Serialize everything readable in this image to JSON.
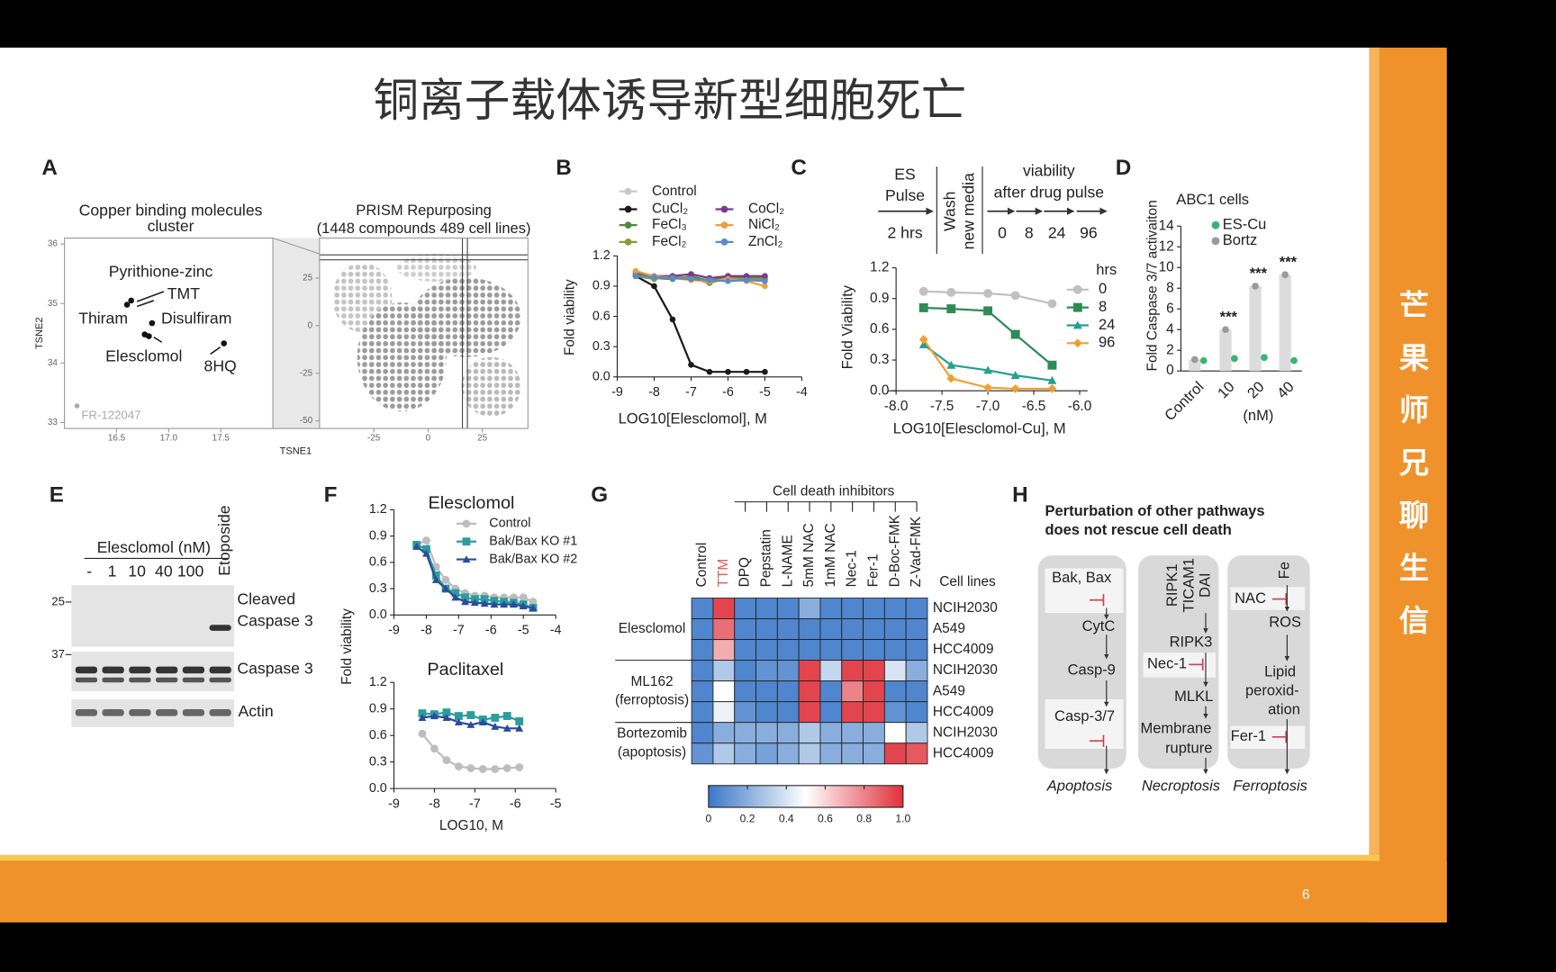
{
  "title": "铜离子载体诱导新型细胞死亡",
  "sidebar": [
    "芒",
    "果",
    "师",
    "兄",
    "聊",
    "生",
    "信"
  ],
  "page_number": "6",
  "panels": {
    "A": {
      "label": "A",
      "left_title": [
        "Copper binding molecules",
        "cluster"
      ],
      "right_title": [
        "PRISM Repurposing",
        "(1448 compounds 489 cell lines)"
      ],
      "ylabel": "TSNE2",
      "xlabel": "TSNE1",
      "cluster": {
        "type": "scatter",
        "xlim": [
          16,
          18
        ],
        "ylim": [
          32.9,
          36.1
        ],
        "xticks": [
          16.5,
          {
            "value": 17,
            "label": "17.0"
          },
          17.5
        ],
        "yticks": [
          33,
          34,
          35,
          36
        ],
        "x": [
          16.6,
          16.64,
          16.77,
          16.81,
          16.84,
          17.53,
          16.12
        ],
        "y": [
          34.98,
          35.05,
          34.48,
          34.45,
          34.67,
          34.33,
          33.28
        ],
        "annotations": [
          "Pyrithione-zinc",
          "TMT",
          "Thiram",
          "Disulfiram",
          "Elesclomol",
          "8HQ",
          "FR-122047"
        ]
      },
      "prism": {
        "type": "scatter",
        "xlim": [
          -50,
          46
        ],
        "ylim": [
          -54,
          46
        ],
        "xticks": [
          -25,
          0,
          25
        ],
        "yticks": [
          25,
          0,
          -25,
          -50
        ]
      }
    },
    "B": {
      "label": "B",
      "type": "line",
      "ylabel": "Fold viability",
      "xlabel": "LOG10[Elesclomol], M",
      "xlim": [
        -9,
        -4
      ],
      "ylim": [
        0,
        1.2
      ],
      "xticks": [
        -9,
        -8,
        -7,
        -6,
        -5,
        -4
      ],
      "yticks": [
        {
          "value": 0,
          "label": "0.0"
        },
        0.3,
        0.6,
        0.9,
        1.2
      ],
      "x": [
        -8.5,
        -8,
        -7.5,
        -7,
        -6.5,
        -6,
        -5.5,
        -5
      ],
      "series": [
        {
          "name": "Control",
          "color": "#c8c8c8",
          "values": [
            1.0,
            1.0,
            1.0,
            0.98,
            0.97,
            1.0,
            0.96,
            1.0
          ]
        },
        {
          "name": "CuCl₂",
          "color": "#1a1a1a",
          "values": [
            1.0,
            0.9,
            0.57,
            0.12,
            0.05,
            0.05,
            0.05,
            0.05
          ]
        },
        {
          "name": "FeCl₃",
          "color": "#4f8a3c",
          "values": [
            1.02,
            0.98,
            0.97,
            1.0,
            0.95,
            1.0,
            0.98,
            0.98
          ]
        },
        {
          "name": "FeCl₂",
          "color": "#8c9a3a",
          "values": [
            1.0,
            0.97,
            1.0,
            0.98,
            0.93,
            0.98,
            0.97,
            0.97
          ]
        },
        {
          "name": "CoCl₂",
          "color": "#7b3a8c",
          "values": [
            1.04,
            1.0,
            1.0,
            1.02,
            0.98,
            1.0,
            1.0,
            1.0
          ]
        },
        {
          "name": "NiCl₂",
          "color": "#e8a040",
          "values": [
            1.05,
            1.0,
            0.98,
            0.96,
            0.95,
            0.97,
            0.95,
            0.9
          ]
        },
        {
          "name": "ZnCl₂",
          "color": "#5a8ac8",
          "values": [
            1.0,
            0.99,
            0.98,
            0.97,
            0.96,
            0.95,
            0.96,
            0.95
          ]
        }
      ]
    },
    "C": {
      "label": "C",
      "protocol": {
        "pulse": [
          "ES",
          "Pulse"
        ],
        "pulse_time": "2 hrs",
        "wash": [
          "Wash",
          "new media"
        ],
        "viability": [
          "viability",
          "after drug pulse"
        ],
        "times": [
          "0",
          "8",
          "24",
          "96"
        ]
      },
      "type": "line",
      "ylabel": "Fold Viability",
      "xlabel": "LOG10[Elesclomol-Cu], M",
      "legend_title": "hrs",
      "xlim": [
        -8,
        -6
      ],
      "ylim": [
        0,
        1.2
      ],
      "xticks": [
        {
          "value": -8,
          "label": "-8.0"
        },
        -7.5,
        {
          "value": -7,
          "label": "-7.0"
        },
        -6.5,
        {
          "value": -6,
          "label": "-6.0"
        }
      ],
      "yticks": [
        {
          "value": 0,
          "label": "0.0"
        },
        0.3,
        0.6,
        0.9,
        1.2
      ],
      "x": [
        -7.7,
        -7.4,
        -7.0,
        -6.7,
        -6.3
      ],
      "series": [
        {
          "name": "0",
          "color": "#c0c0c0",
          "values": [
            0.97,
            0.96,
            0.95,
            0.93,
            0.85
          ]
        },
        {
          "name": "8",
          "color": "#2e8b57",
          "values": [
            0.81,
            0.8,
            0.78,
            0.55,
            0.25
          ]
        },
        {
          "name": "24",
          "color": "#22a090",
          "values": [
            0.45,
            0.25,
            0.2,
            0.15,
            0.1
          ]
        },
        {
          "name": "96",
          "color": "#f0a030",
          "values": [
            0.5,
            0.12,
            0.03,
            0.02,
            0.02
          ]
        }
      ]
    },
    "D": {
      "label": "D",
      "type": "bar",
      "subtitle": "ABC1 cells",
      "ylabel": "Fold Caspase 3/7 activaiton",
      "unit": "(nM)",
      "categories": [
        "Control",
        "10",
        "20",
        "40"
      ],
      "ylim": [
        0,
        14
      ],
      "yticks": [
        0,
        2,
        4,
        6,
        8,
        10,
        12,
        14
      ],
      "series": [
        {
          "name": "ES-Cu",
          "color": "#3cb371",
          "values": [
            1.0,
            1.2,
            1.3,
            1.0
          ]
        },
        {
          "name": "Bortz",
          "color": "#9a9a9a",
          "values": [
            1.1,
            4.0,
            8.2,
            9.3
          ]
        }
      ],
      "significance": [
        null,
        "***",
        "***",
        "***"
      ]
    },
    "E": {
      "label": "E",
      "treatment": "Elesclomol (nM)",
      "lanes": [
        "-",
        "1",
        "10",
        "40",
        "100"
      ],
      "control_lane": "Etoposide",
      "markers": [
        "25",
        "37"
      ],
      "blots": [
        [
          "Cleaved",
          "Caspase 3"
        ],
        [
          "Caspase 3"
        ],
        [
          "Actin"
        ]
      ]
    },
    "F": {
      "label": "F",
      "ylabel": "Fold viability",
      "xlabel": "LOG10, M",
      "charts": [
        {
          "title": "Elesclomol",
          "type": "line",
          "xlim": [
            -9,
            -4
          ],
          "ylim": [
            0,
            1.2
          ],
          "xticks": [
            -9,
            -8,
            -7,
            -6,
            -5,
            -4
          ],
          "yticks": [
            {
              "value": 0,
              "label": "0.0"
            },
            0.3,
            0.6,
            0.9,
            1.2
          ],
          "x": [
            -8.3,
            -8.0,
            -7.7,
            -7.4,
            -7.1,
            -6.8,
            -6.5,
            -6.2,
            -5.9,
            -5.6,
            -5.3,
            -5.0,
            -4.7
          ],
          "series": [
            {
              "name": "Control",
              "color": "#bdbdbd",
              "values": [
                0.8,
                0.85,
                0.55,
                0.4,
                0.3,
                0.25,
                0.22,
                0.22,
                0.2,
                0.2,
                0.2,
                0.2,
                0.15
              ]
            },
            {
              "name": "Bak/Bax KO #1",
              "color": "#2a9d9d",
              "values": [
                0.8,
                0.75,
                0.45,
                0.3,
                0.25,
                0.2,
                0.18,
                0.18,
                0.16,
                0.15,
                0.14,
                0.12,
                0.08
              ]
            },
            {
              "name": "Bak/Bax KO #2",
              "color": "#2b4c9b",
              "values": [
                0.78,
                0.7,
                0.4,
                0.3,
                0.2,
                0.15,
                0.14,
                0.13,
                0.12,
                0.12,
                0.12,
                0.1,
                0.08
              ]
            }
          ]
        },
        {
          "title": "Paclitaxel",
          "type": "line",
          "xlim": [
            -9,
            -5
          ],
          "ylim": [
            0,
            1.2
          ],
          "xticks": [
            -9,
            -8,
            -7,
            -6,
            -5
          ],
          "yticks": [
            {
              "value": 0,
              "label": "0.0"
            },
            0.3,
            0.6,
            0.9,
            1.2
          ],
          "x": [
            -8.3,
            -8.0,
            -7.7,
            -7.4,
            -7.1,
            -6.8,
            -6.5,
            -6.2,
            -5.9
          ],
          "series": [
            {
              "color": "#bdbdbd",
              "values": [
                0.62,
                0.45,
                0.32,
                0.25,
                0.23,
                0.22,
                0.22,
                0.23,
                0.24
              ]
            },
            {
              "color": "#2a9d9d",
              "values": [
                0.85,
                0.84,
                0.86,
                0.82,
                0.83,
                0.78,
                0.8,
                0.82,
                0.76
              ]
            },
            {
              "color": "#2b4c9b",
              "values": [
                0.8,
                0.82,
                0.8,
                0.75,
                0.72,
                0.75,
                0.7,
                0.68,
                0.68
              ]
            }
          ]
        }
      ]
    },
    "G": {
      "label": "G",
      "type": "heatmap",
      "group_title": "Cell death inhibitors",
      "row_title": "Cell lines",
      "columns": [
        "Control",
        "TTM",
        "DPQ",
        "Pepstatin",
        "L-NAME",
        "5mM NAC",
        "1mM NAC",
        "Nec-1",
        "Fer-1",
        "D-Boc-FMK",
        "Z-Vad-FMK"
      ],
      "highlight": {
        "column": 1,
        "color": "#e05a5a"
      },
      "rows": [
        "NCIH2030",
        "A549",
        "HCC4009",
        "NCIH2030",
        "A549",
        "HCC4009",
        "NCIH2030",
        "HCC4009"
      ],
      "groups": [
        [
          "Elesclomol"
        ],
        [
          "ML162",
          "(ferroptosis)"
        ],
        [
          "Bortezomib",
          "(apoptosis)"
        ]
      ],
      "values": [
        [
          0.05,
          0.95,
          0.05,
          0.05,
          0.05,
          0.2,
          0.05,
          0.05,
          0.05,
          0.05,
          0.05
        ],
        [
          0.05,
          0.85,
          0.05,
          0.05,
          0.05,
          0.05,
          0.05,
          0.05,
          0.05,
          0.05,
          0.05
        ],
        [
          0.05,
          0.7,
          0.05,
          0.05,
          0.05,
          0.05,
          0.05,
          0.05,
          0.05,
          0.05,
          0.05
        ],
        [
          0.05,
          0.3,
          0.05,
          0.1,
          0.1,
          0.95,
          0.35,
          0.95,
          0.95,
          0.4,
          0.2
        ],
        [
          0.05,
          0.5,
          0.05,
          0.05,
          0.05,
          0.95,
          0.05,
          0.8,
          0.95,
          0.05,
          0.05
        ],
        [
          0.05,
          0.45,
          0.1,
          0.05,
          0.05,
          0.95,
          0.05,
          0.95,
          0.95,
          0.1,
          0.05
        ],
        [
          0.05,
          0.2,
          0.2,
          0.2,
          0.2,
          0.3,
          0.2,
          0.2,
          0.2,
          0.5,
          0.3
        ],
        [
          0.1,
          0.3,
          0.2,
          0.15,
          0.2,
          0.3,
          0.2,
          0.2,
          0.2,
          0.95,
          0.9
        ]
      ],
      "colorbar": {
        "lim": [
          0,
          1
        ],
        "ticks": [
          0,
          0.2,
          0.4,
          0.6,
          0.8,
          {
            "value": 1,
            "label": "1.0"
          }
        ]
      },
      "colors": [
        "#3b78c8",
        "#ffffff",
        "#e0303a"
      ]
    },
    "H": {
      "label": "H",
      "title": [
        "Perturbation of other pathways",
        "does not rescue cell death"
      ],
      "pathways": [
        {
          "name": "Apoptosis",
          "nodes": [
            "Bak, Bax",
            "CytC",
            "Casp-9",
            "Casp-3/7"
          ]
        },
        {
          "name": "Necroptosis",
          "nodes": [
            "RIPK1",
            "TICAM1",
            "DAI",
            "RIPK3",
            "Nec-1",
            "MLKL",
            "Membrane",
            "rupture"
          ]
        },
        {
          "name": "Ferroptosis",
          "nodes": [
            "Fe",
            "NAC",
            "ROS",
            "Lipid",
            "peroxid-",
            "ation",
            "Fer-1"
          ]
        }
      ]
    }
  }
}
